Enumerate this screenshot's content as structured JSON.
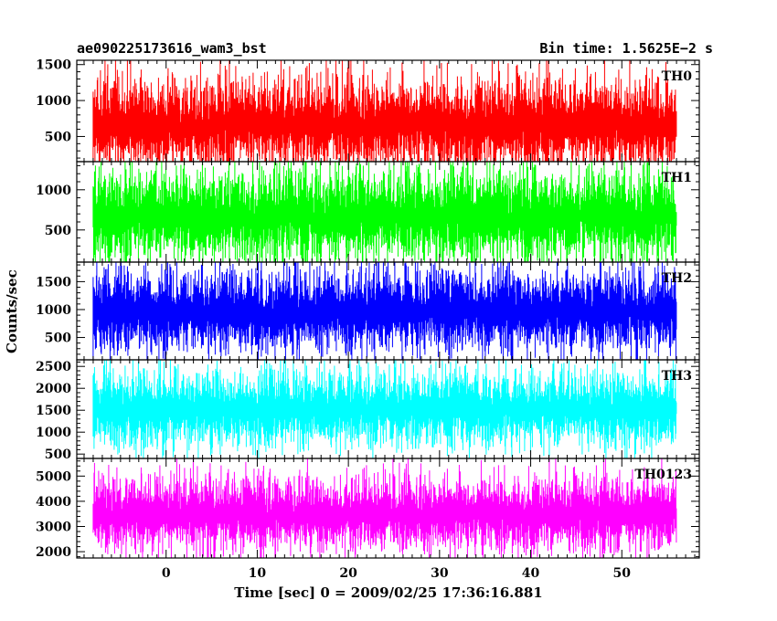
{
  "title_left": "ae090225173616_wam3_bst",
  "title_right": "Bin time: 1.5625E−2 s",
  "ylabel": "Counts/sec",
  "xlabel": "Time [sec] 0 = 2009/02/25 17:36:16.881",
  "chart_data": [
    {
      "type": "line",
      "series": [
        {
          "name": "TH0",
          "color": "#ff0000"
        }
      ],
      "x_range": [
        -8,
        56
      ],
      "ylim": [
        150,
        1560
      ],
      "baseline": 650,
      "spread": 330,
      "yticks": [
        500,
        1000,
        1500
      ],
      "xticks": [
        0,
        10,
        20,
        30,
        40,
        50
      ]
    },
    {
      "type": "line",
      "series": [
        {
          "name": "TH1",
          "color": "#00ff00"
        }
      ],
      "x_range": [
        -8,
        56
      ],
      "ylim": [
        100,
        1350
      ],
      "baseline": 650,
      "spread": 300,
      "yticks": [
        500,
        1000
      ],
      "xticks": [
        0,
        10,
        20,
        30,
        40,
        50
      ]
    },
    {
      "type": "line",
      "series": [
        {
          "name": "TH2",
          "color": "#0000ff"
        }
      ],
      "x_range": [
        -8,
        56
      ],
      "ylim": [
        100,
        1850
      ],
      "baseline": 950,
      "spread": 380,
      "yticks": [
        500,
        1000,
        1500
      ],
      "xticks": [
        0,
        10,
        20,
        30,
        40,
        50
      ]
    },
    {
      "type": "line",
      "series": [
        {
          "name": "TH3",
          "color": "#00ffff"
        }
      ],
      "x_range": [
        -8,
        56
      ],
      "ylim": [
        400,
        2650
      ],
      "baseline": 1500,
      "spread": 450,
      "yticks": [
        500,
        1000,
        1500,
        2000,
        2500
      ],
      "xticks": [
        0,
        10,
        20,
        30,
        40,
        50
      ]
    },
    {
      "type": "line",
      "series": [
        {
          "name": "TH0123",
          "color": "#ff00ff"
        }
      ],
      "x_range": [
        -8,
        56
      ],
      "ylim": [
        1750,
        5700
      ],
      "baseline": 3450,
      "spread": 750,
      "yticks": [
        2000,
        3000,
        4000,
        5000
      ],
      "xticks": [
        0,
        10,
        20,
        30,
        40,
        50
      ]
    }
  ],
  "x_axis": {
    "min": -9.8,
    "max": 58.5,
    "tick_labels": [
      "0",
      "10",
      "20",
      "30",
      "40",
      "50"
    ]
  }
}
